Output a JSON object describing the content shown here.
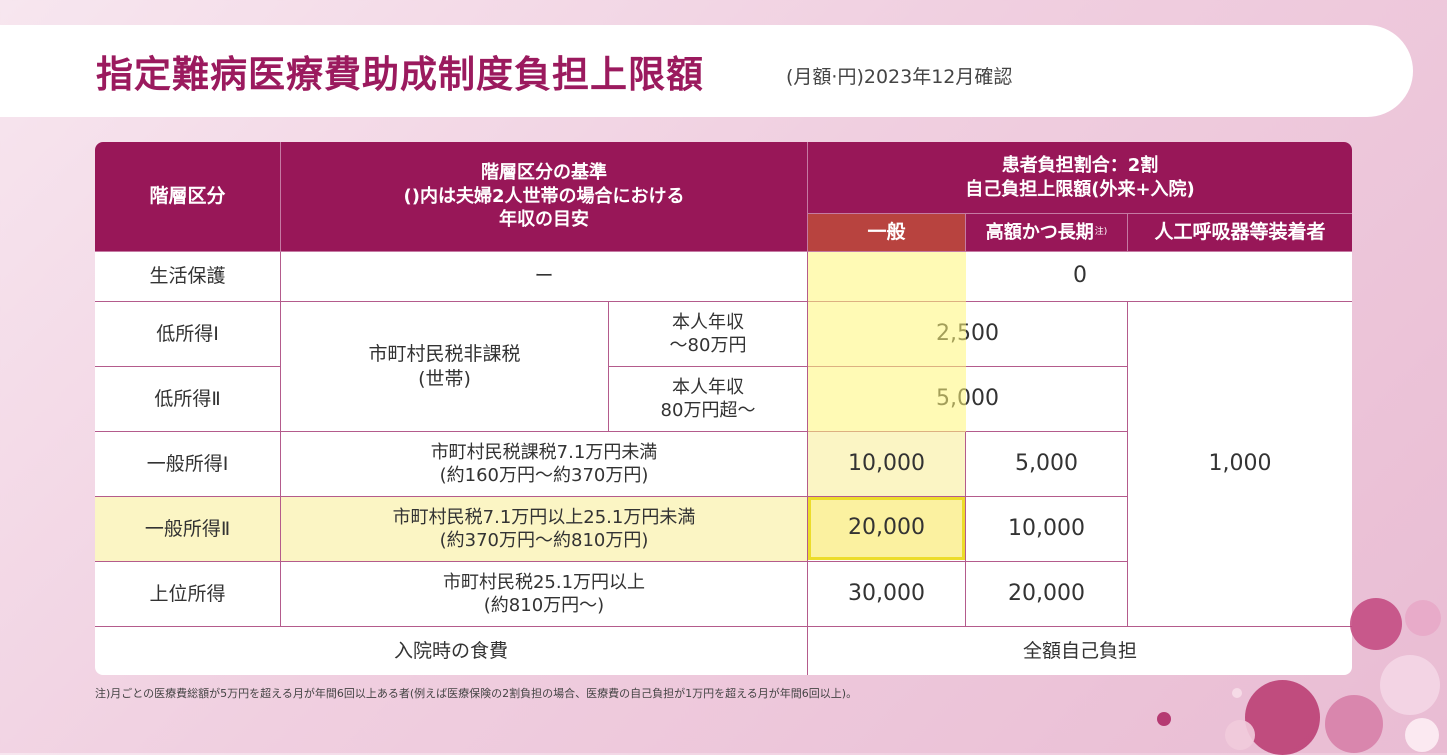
{
  "title": {
    "main": "指定難病医療費助成制度負担上限額",
    "sub": "(月額·円)2023年12月確認"
  },
  "header": {
    "tier": "階層区分",
    "criteria": "階層区分の基準\n()内は夫婦2人世帯の場合における\n年収の目安",
    "ratio": "患者負担割合：2割\n自己負担上限額(外来+入院)",
    "general": "一般",
    "long_term": "高額かつ長期",
    "long_term_note": "注)",
    "ventilator": "人工呼吸器等装着者"
  },
  "rows": {
    "welfare": {
      "tier": "生活保護",
      "criteria": "ー",
      "limit": "0"
    },
    "low_shared_criteria": "市町村民税非課税\n(世帯)",
    "low1": {
      "tier": "低所得Ⅰ",
      "income": "本人年収\n～80万円",
      "limit": "2,500"
    },
    "low2": {
      "tier": "低所得Ⅱ",
      "income": "本人年収\n80万円超～",
      "limit": "5,000"
    },
    "gen1": {
      "tier": "一般所得Ⅰ",
      "criteria": "市町村民税課税7.1万円未満\n(約160万円～約370万円)",
      "general": "10,000",
      "long_term": "5,000"
    },
    "gen2": {
      "tier": "一般所得Ⅱ",
      "criteria": "市町村民税7.1万円以上25.1万円未満\n(約370万円～約810万円)",
      "general": "20,000",
      "long_term": "10,000"
    },
    "upper": {
      "tier": "上位所得",
      "criteria": "市町村民税25.1万円以上\n(約810万円～)",
      "general": "30,000",
      "long_term": "20,000"
    },
    "ventilator_limit": "1,000",
    "meal": {
      "label": "入院時の食費",
      "value": "全額自己負担"
    }
  },
  "note": "注)月ごとの医療費総額が5万円を超える月が年間6回以上ある者(例えば医療保険の2割負担の場合、医療費の自己負担が1万円を超える月が年間6回以上)。",
  "colors": {
    "brand": "#981758",
    "general_header": "#b8433f",
    "highlight": "#fbf1a0"
  }
}
